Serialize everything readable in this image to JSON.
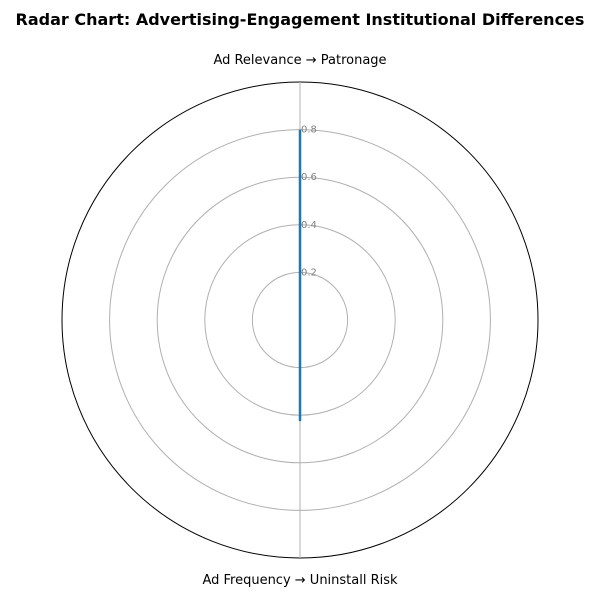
{
  "chart_data": {
    "type": "radar",
    "title": "Radar Chart: Advertising-Engagement Institutional Differences",
    "axes": [
      "Ad Relevance → Patronage",
      "Ad Frequency → Uninstall Risk"
    ],
    "series": [
      {
        "values": [
          0.8,
          0.42
        ],
        "color": "#1f77b4"
      }
    ],
    "rlim": [
      0,
      1.0
    ],
    "r_ticks": [
      0.2,
      0.4,
      0.6,
      0.8
    ],
    "r_tick_labels": [
      "0.2",
      "0.4",
      "0.6",
      "0.8"
    ],
    "grid": true,
    "legend": "none"
  },
  "colors": {
    "grid": "#b0b0b0",
    "outer": "#000000",
    "tick_text": "#808080"
  }
}
